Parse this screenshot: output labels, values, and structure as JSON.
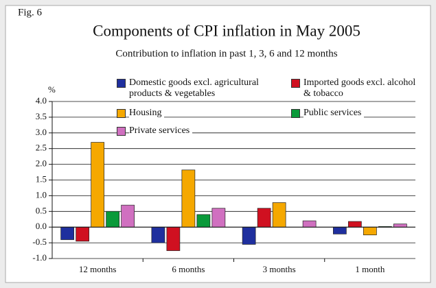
{
  "chart_data": {
    "type": "bar",
    "figure_label": "Fig. 6",
    "title": "Components of CPI inflation in May 2005",
    "subtitle": "Contribution to inflation in past 1, 3, 6 and 12 months",
    "y_unit": "%",
    "categories": [
      "12 months",
      "6 months",
      "3 months",
      "1 month"
    ],
    "series": [
      {
        "name": "Domestic goods excl. agricultural products & vegetables",
        "color": "#1f2f9e",
        "values": [
          -0.4,
          -0.5,
          -0.55,
          -0.22
        ]
      },
      {
        "name": "Imported goods excl. alcohol & tobacco",
        "color": "#d01020",
        "values": [
          -0.45,
          -0.75,
          0.6,
          0.18
        ]
      },
      {
        "name": "Housing",
        "color": "#f5a800",
        "values": [
          2.7,
          1.82,
          0.78,
          -0.25
        ]
      },
      {
        "name": "Public services",
        "color": "#0a9a3a",
        "values": [
          0.5,
          0.4,
          0.0,
          0.02
        ]
      },
      {
        "name": "Private services",
        "color": "#d070c0",
        "values": [
          0.7,
          0.6,
          0.2,
          0.1
        ]
      }
    ],
    "ylim": [
      -1.0,
      4.0
    ],
    "yticks": [
      {
        "value": -1.0,
        "label": "-1.0"
      },
      {
        "value": -0.5,
        "label": "-0.5"
      },
      {
        "value": 0.0,
        "label": "0.0"
      },
      {
        "value": 0.5,
        "label": "0.5"
      },
      {
        "value": 1.0,
        "label": "1.0"
      },
      {
        "value": 1.5,
        "label": "1.5"
      },
      {
        "value": 2.0,
        "label": "2.0"
      },
      {
        "value": 2.5,
        "label": "2.5"
      },
      {
        "value": 3.0,
        "label": "3.0"
      },
      {
        "value": 3.5,
        "label": "3.5"
      },
      {
        "value": 4.0,
        "label": "4.0"
      }
    ],
    "grid": true
  }
}
